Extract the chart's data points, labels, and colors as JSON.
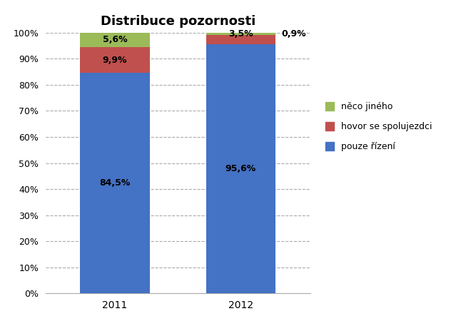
{
  "title": "Distribuce pozornosti",
  "categories": [
    "2011",
    "2012"
  ],
  "series": {
    "pouze řízení": [
      84.5,
      95.6
    ],
    "hovor se spolujezdci": [
      9.9,
      3.5
    ],
    "něco jiného": [
      5.6,
      0.9
    ]
  },
  "colors": {
    "pouze řízení": "#4472C4",
    "hovor se spolujezdci": "#C0504D",
    "něco jiného": "#9BBB59"
  },
  "bar_labels": {
    "pouze řízení": [
      "84,5%",
      "95,6%"
    ],
    "hovor se spolujezdci": [
      "9,9%",
      ""
    ],
    "něco jiného": [
      "5,6%",
      "3,5%"
    ]
  },
  "outside_label_2012": "0,9%",
  "ylim": [
    0,
    100
  ],
  "yticks": [
    0,
    10,
    20,
    30,
    40,
    50,
    60,
    70,
    80,
    90,
    100
  ],
  "ytick_labels": [
    "0%",
    "10%",
    "20%",
    "30%",
    "40%",
    "50%",
    "60%",
    "70%",
    "80%",
    "90%",
    "100%"
  ],
  "bar_width": 0.55,
  "title_fontsize": 13,
  "label_fontsize": 9,
  "legend_fontsize": 9,
  "tick_fontsize": 9,
  "background_color": "#FFFFFF",
  "grid_color": "#AAAAAA",
  "grid_linestyle": "--"
}
